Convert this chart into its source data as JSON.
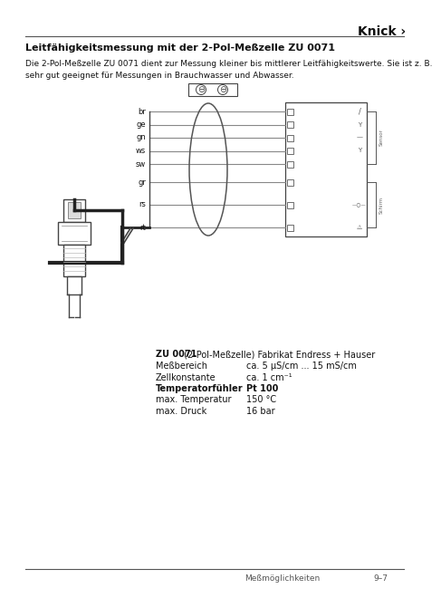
{
  "bg_color": "#ffffff",
  "title_text": "Knick ›",
  "heading": "Leitfähigkeitsmessung mit der 2-Pol-Meßzelle ZU 0071",
  "body_text": "Die 2-Pol-Meßzelle ZU 0071 dient zur Messung kleiner bis mittlerer Leitfähigkeitswerte. Sie ist z. B.\nsehr gut geeignet für Messungen in Brauchwasser und Abwasser.",
  "spec_label": "ZU 0071",
  "spec_label2": " (2-Pol-Meßzelle) Fabrikat Endress + Hauser",
  "spec_rows": [
    [
      "Meßbereich",
      "ca. 5 μS/cm ... 15 mS/cm"
    ],
    [
      "Zellkonstante",
      "ca. 1 cm⁻¹"
    ],
    [
      "Temperatorfühler",
      "Pt 100"
    ],
    [
      "max. Temperatur",
      "150 °C"
    ],
    [
      "max. Druck",
      "16 bar"
    ]
  ],
  "spec_bold_rows": [
    2
  ],
  "footer_left": "Meßmöglichkeiten",
  "footer_right": "9–7",
  "wire_labels": [
    "br",
    "ge",
    "gn",
    "ws",
    "sw",
    "gr",
    "rs",
    "rt"
  ],
  "line_color": "#555555",
  "wire_color": "#333333",
  "dark": "#111111"
}
